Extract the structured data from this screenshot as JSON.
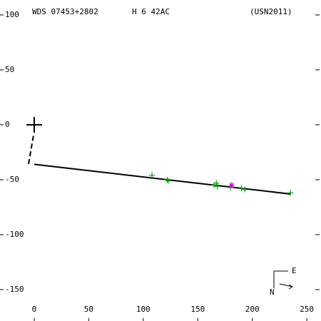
{
  "chart_data": {
    "type": "scatter",
    "header": [
      "WDS 07453+2802",
      "H 6  42AC",
      "(USN2011)"
    ],
    "xlim": [
      -31.4,
      263
    ],
    "ylim": [
      -178.6,
      113.6
    ],
    "xticks": [
      0,
      50,
      100,
      150,
      200,
      250
    ],
    "yticks": [
      100,
      50,
      0,
      -50,
      -100,
      -150
    ],
    "observations": {
      "color": "#00a000",
      "x": [
        108,
        122,
        123,
        165,
        167,
        168,
        180,
        190,
        193,
        235
      ],
      "y": [
        -46,
        -50,
        -51,
        -55,
        -53,
        -56,
        -57,
        -58,
        -59,
        -62
      ]
    },
    "highlight": {
      "color": "#e000e0",
      "x": [
        181
      ],
      "y": [
        -55
      ]
    },
    "fit_line": {
      "color": "#000000",
      "x": [
        0,
        235
      ],
      "y": [
        -36,
        -63
      ]
    },
    "node_line": {
      "color": "#000000",
      "x": [
        -5.2,
        -0.7
      ],
      "y": [
        -35.7,
        -9.7
      ]
    },
    "compass": [
      "E",
      "N"
    ]
  }
}
